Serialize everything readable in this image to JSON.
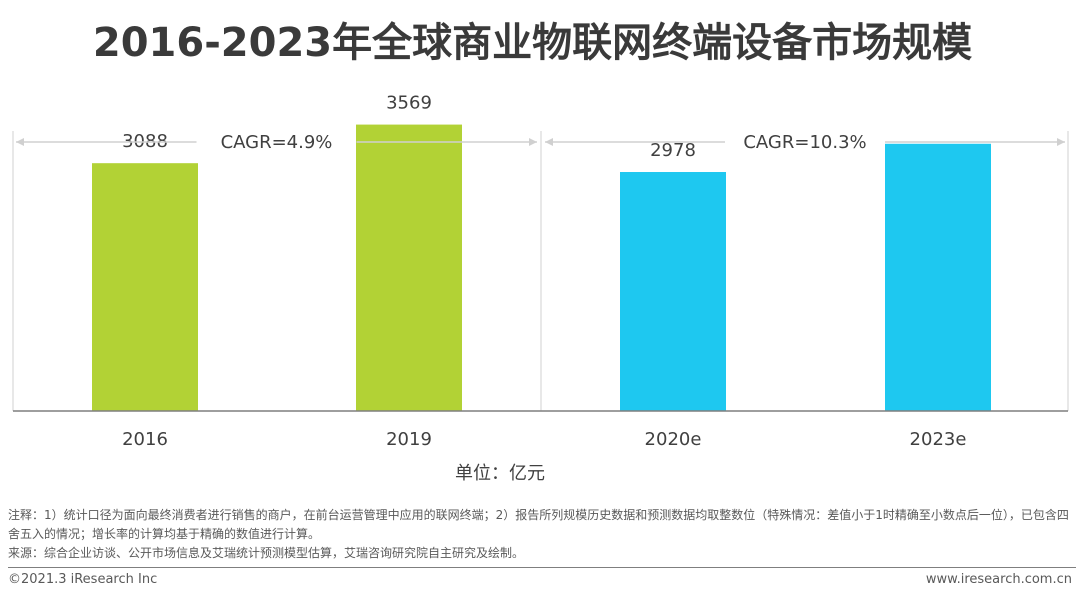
{
  "title": "2016-2023年全球商业物联网终端设备市场规模",
  "chart_data": {
    "type": "bar",
    "categories": [
      "2016",
      "2019",
      "2020e",
      "2023e"
    ],
    "values": [
      3088,
      3569,
      2978,
      null
    ],
    "colors": [
      "#b2d235",
      "#b2d235",
      "#1ec8f0",
      "#1ec8f0"
    ],
    "annotations": [
      {
        "label": "CAGR=4.9%",
        "from": "2016",
        "to": "2019"
      },
      {
        "label": "CAGR=10.3%",
        "from": "2020e",
        "to": "2023e"
      }
    ],
    "unit": "单位：亿元",
    "ylim": [
      0,
      4000
    ]
  },
  "notes": {
    "note1": "注释：1）统计口径为面向最终消费者进行销售的商户，在前台运营管理中应用的联网终端；2）报告所列规模历史数据和预测数据均取整数位（特殊情况：差值小于1时精确至小数点后一位），已包含四舍五入的情况；增长率的计算均基于精确的数值进行计算。",
    "source": "来源：综合企业访谈、公开市场信息及艾瑞统计预测模型估算，艾瑞咨询研究院自主研究及绘制。"
  },
  "footer": {
    "copyright": "©2021.3 iResearch Inc",
    "website": "www.iresearch.com.cn"
  }
}
